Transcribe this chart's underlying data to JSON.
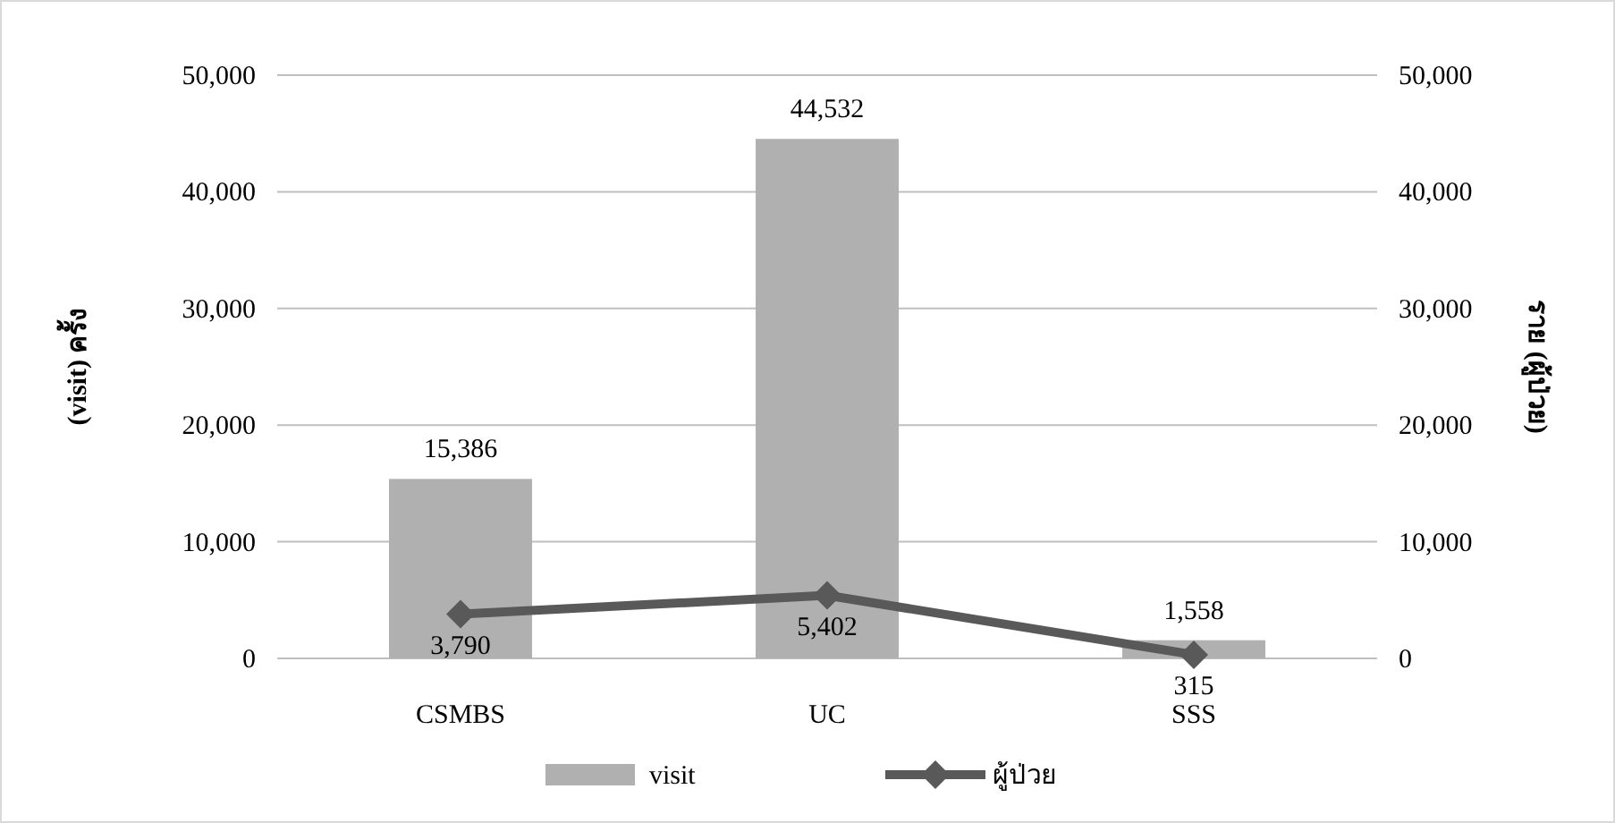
{
  "chart_data": {
    "type": "bar",
    "categories": [
      "CSMBS",
      "UC",
      "SSS"
    ],
    "series": [
      {
        "name": "visit",
        "color": "#b0b0b0",
        "values": [
          15386,
          44532,
          1558
        ],
        "value_labels": [
          "15,386",
          "44,532",
          "1,558"
        ]
      },
      {
        "name": "ผู้ป่วย",
        "type": "line",
        "axis": "y2",
        "color": "#595959",
        "marker": "diamond",
        "values": [
          3790,
          5402,
          315
        ],
        "value_labels": [
          "3,790",
          "5,402",
          "315"
        ]
      }
    ],
    "ylabel": "(visit) ครั้ง",
    "y2label": "ราย (ผู้ป่วย)",
    "ylim": [
      0,
      50000
    ],
    "yticks": [
      {
        "value": 0,
        "label": "0"
      },
      {
        "value": 10000,
        "label": "10,000"
      },
      {
        "value": 20000,
        "label": "20,000"
      },
      {
        "value": 30000,
        "label": "30,000"
      },
      {
        "value": 40000,
        "label": "40,000"
      },
      {
        "value": 50000,
        "label": "50,000"
      }
    ],
    "y2lim": [
      0,
      50000
    ],
    "y2ticks": [
      {
        "value": 0,
        "label": "0"
      },
      {
        "value": 10000,
        "label": "10,000"
      },
      {
        "value": 20000,
        "label": "20,000"
      },
      {
        "value": 30000,
        "label": "30,000"
      },
      {
        "value": 40000,
        "label": "40,000"
      },
      {
        "value": 50000,
        "label": "50,000"
      }
    ],
    "grid": "y",
    "legend": "bottom"
  }
}
